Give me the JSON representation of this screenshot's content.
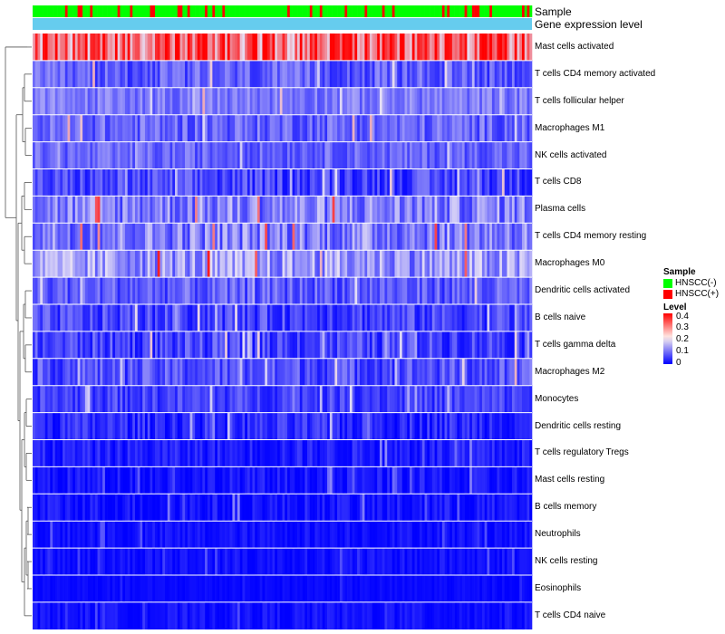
{
  "colors": {
    "hnscc_neg": "#00ff00",
    "hnscc_pos": "#ff0000",
    "expression_bar": "#66ccee",
    "low": "#0000ff",
    "mid": "#e6e0f6",
    "high": "#ff0000"
  },
  "annotations": {
    "sample_label": "Sample",
    "expression_label": "Gene expression level"
  },
  "legend": {
    "sample_title": "Sample",
    "sample_entries": [
      {
        "label": "HNSCC(-)",
        "color": "#00ff00"
      },
      {
        "label": "HNSCC(+)",
        "color": "#ff0000"
      }
    ],
    "level_title": "Level",
    "level_ticks": [
      "0.4",
      "0.3",
      "0.2",
      "0.1",
      "0"
    ]
  },
  "chart_data": {
    "type": "heatmap",
    "title": "",
    "xlabel": "",
    "ylabel": "",
    "value_range": [
      0,
      0.4
    ],
    "n_samples": 200,
    "sample_groups": [
      "HNSCC(-)",
      "HNSCC(+)"
    ],
    "approx_positive_fraction": 0.2,
    "rows": [
      {
        "name": "Mast cells activated",
        "typical_level": 0.3,
        "spread": 0.12
      },
      {
        "name": "T cells CD4 memory activated",
        "typical_level": 0.07,
        "spread": 0.05
      },
      {
        "name": "T cells follicular helper",
        "typical_level": 0.1,
        "spread": 0.04
      },
      {
        "name": "Macrophages M1",
        "typical_level": 0.08,
        "spread": 0.05
      },
      {
        "name": "NK cells activated",
        "typical_level": 0.08,
        "spread": 0.04
      },
      {
        "name": "T cells CD8",
        "typical_level": 0.05,
        "spread": 0.05
      },
      {
        "name": "Plasma cells",
        "typical_level": 0.1,
        "spread": 0.07
      },
      {
        "name": "T cells CD4 memory resting",
        "typical_level": 0.1,
        "spread": 0.07
      },
      {
        "name": "Macrophages M0",
        "typical_level": 0.12,
        "spread": 0.07
      },
      {
        "name": "Dendritic cells activated",
        "typical_level": 0.07,
        "spread": 0.05
      },
      {
        "name": "B cells naive",
        "typical_level": 0.05,
        "spread": 0.05
      },
      {
        "name": "T cells gamma delta",
        "typical_level": 0.05,
        "spread": 0.05
      },
      {
        "name": "Macrophages M2",
        "typical_level": 0.06,
        "spread": 0.05
      },
      {
        "name": "Monocytes",
        "typical_level": 0.05,
        "spread": 0.04
      },
      {
        "name": "Dendritic cells resting",
        "typical_level": 0.03,
        "spread": 0.04
      },
      {
        "name": "T cells regulatory  Tregs",
        "typical_level": 0.02,
        "spread": 0.03
      },
      {
        "name": "Mast cells resting",
        "typical_level": 0.01,
        "spread": 0.03
      },
      {
        "name": "B cells memory",
        "typical_level": 0.01,
        "spread": 0.03
      },
      {
        "name": "Neutrophils",
        "typical_level": 0.01,
        "spread": 0.02
      },
      {
        "name": "NK cells resting",
        "typical_level": 0.01,
        "spread": 0.02
      },
      {
        "name": "Eosinophils",
        "typical_level": 0.005,
        "spread": 0.01
      },
      {
        "name": "T cells CD4 naive",
        "typical_level": 0.01,
        "spread": 0.02
      }
    ]
  }
}
